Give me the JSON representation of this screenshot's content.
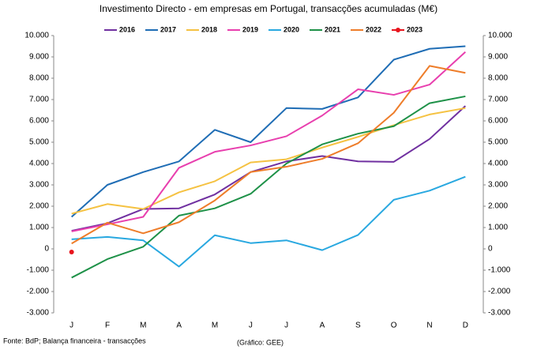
{
  "chart_data": {
    "type": "line",
    "title": "Investimento Directo - em empresas em Portugal, transacções acumuladas (M€)",
    "categories": [
      "J",
      "F",
      "M",
      "A",
      "M",
      "J",
      "J",
      "A",
      "S",
      "O",
      "N",
      "D"
    ],
    "series": [
      {
        "name": "2016",
        "color": "#7030a0",
        "values": [
          850,
          1200,
          1870,
          1900,
          2550,
          3600,
          4100,
          4350,
          4100,
          4080,
          5150,
          6700
        ]
      },
      {
        "name": "2017",
        "color": "#1f6db5",
        "values": [
          1500,
          3000,
          3600,
          4100,
          5580,
          5000,
          6600,
          6560,
          7100,
          8870,
          9380,
          9500
        ]
      },
      {
        "name": "2018",
        "color": "#f5c242",
        "values": [
          1650,
          2100,
          1870,
          2650,
          3170,
          4050,
          4200,
          4750,
          5250,
          5800,
          6300,
          6600
        ]
      },
      {
        "name": "2019",
        "color": "#e83fae",
        "values": [
          820,
          1150,
          1500,
          3800,
          4550,
          4850,
          5280,
          6250,
          7480,
          7220,
          7700,
          9230
        ]
      },
      {
        "name": "2020",
        "color": "#29a8e0",
        "values": [
          450,
          560,
          400,
          -830,
          640,
          270,
          400,
          -60,
          650,
          2300,
          2730,
          3380
        ]
      },
      {
        "name": "2021",
        "color": "#1e9148",
        "values": [
          -1350,
          -480,
          100,
          1560,
          1900,
          2580,
          4000,
          4900,
          5400,
          5750,
          6830,
          7150
        ]
      },
      {
        "name": "2022",
        "color": "#ee7d2a",
        "values": [
          250,
          1230,
          730,
          1250,
          2270,
          3600,
          3850,
          4220,
          4950,
          6380,
          8580,
          8250
        ]
      },
      {
        "name": "2023",
        "color": "#e8141c",
        "values": [
          -150,
          null,
          null,
          null,
          null,
          null,
          null,
          null,
          null,
          null,
          null,
          null
        ]
      }
    ],
    "ylim": [
      -3000,
      10000
    ],
    "yticks": [
      {
        "value": -3000,
        "label": "-3.000"
      },
      {
        "value": -2000,
        "label": "-2.000"
      },
      {
        "value": -1000,
        "label": "-1.000"
      },
      0,
      {
        "value": 1000,
        "label": "1.000"
      },
      {
        "value": 2000,
        "label": "2.000"
      },
      {
        "value": 3000,
        "label": "3.000"
      },
      {
        "value": 4000,
        "label": "4.000"
      },
      {
        "value": 5000,
        "label": "5.000"
      },
      {
        "value": 6000,
        "label": "6.000"
      },
      {
        "value": 7000,
        "label": "7.000"
      },
      {
        "value": 8000,
        "label": "8.000"
      },
      {
        "value": 9000,
        "label": "9.000"
      },
      {
        "value": 10000,
        "label": "10.000"
      }
    ],
    "y2lim": [
      -3000,
      10000
    ],
    "y2ticks": [
      {
        "value": -3000,
        "label": "-3.000"
      },
      {
        "value": -2000,
        "label": "-2.000"
      },
      {
        "value": -1000,
        "label": "-1.000"
      },
      0,
      {
        "value": 1000,
        "label": "1.000"
      },
      {
        "value": 2000,
        "label": "2.000"
      },
      {
        "value": 3000,
        "label": "3.000"
      },
      {
        "value": 4000,
        "label": "4.000"
      },
      {
        "value": 5000,
        "label": "5.000"
      },
      {
        "value": 6000,
        "label": "6.000"
      },
      {
        "value": 7000,
        "label": "7.000"
      },
      {
        "value": 8000,
        "label": "8.000"
      },
      {
        "value": 9000,
        "label": "9.000"
      },
      {
        "value": 10000,
        "label": "10.000"
      }
    ],
    "grid": false,
    "legend": "top",
    "source": "Fonte: BdP; Balança financeira - transacções",
    "credit": "(Gráfico: GEE)"
  }
}
